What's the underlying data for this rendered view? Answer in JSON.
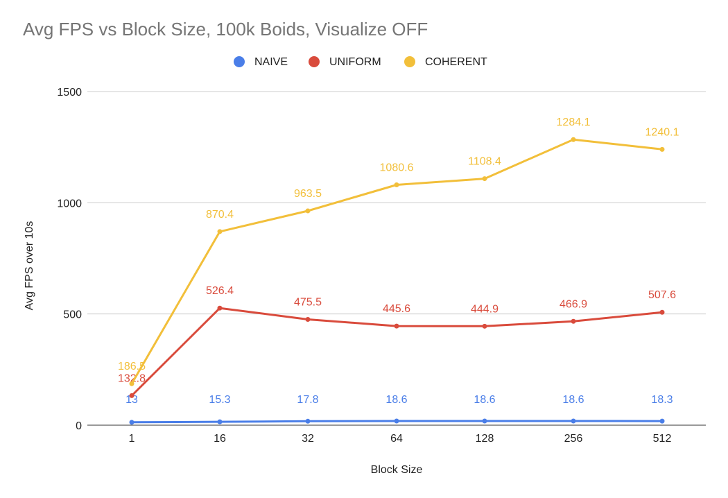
{
  "chart_data": {
    "type": "line",
    "title": "Avg FPS vs Block Size, 100k Boids, Visualize OFF",
    "xlabel": "Block Size",
    "ylabel": "Avg FPS over 10s",
    "categories": [
      "1",
      "16",
      "32",
      "64",
      "128",
      "256",
      "512"
    ],
    "ylim": [
      0,
      1500
    ],
    "yticks": [
      "0",
      "500",
      "1000",
      "1500"
    ],
    "grid": true,
    "legend_position": "top-center",
    "series": [
      {
        "name": "NAIVE",
        "color": "#4a7ee8",
        "values": [
          13,
          15.3,
          17.8,
          18.6,
          18.6,
          18.6,
          18.3
        ],
        "labels": [
          "13",
          "15.3",
          "17.8",
          "18.6",
          "18.6",
          "18.6",
          "18.3"
        ]
      },
      {
        "name": "UNIFORM",
        "color": "#d94b3c",
        "values": [
          132.8,
          526.4,
          475.5,
          445.6,
          444.9,
          466.9,
          507.6
        ],
        "labels": [
          "132.8",
          "526.4",
          "475.5",
          "445.6",
          "444.9",
          "466.9",
          "507.6"
        ]
      },
      {
        "name": "COHERENT",
        "color": "#f2bf3a",
        "values": [
          186.5,
          870.4,
          963.5,
          1080.6,
          1108.4,
          1284.1,
          1240.1
        ],
        "labels": [
          "186.5",
          "870.4",
          "963.5",
          "1080.6",
          "1108.4",
          "1284.1",
          "1240.1"
        ]
      }
    ]
  }
}
